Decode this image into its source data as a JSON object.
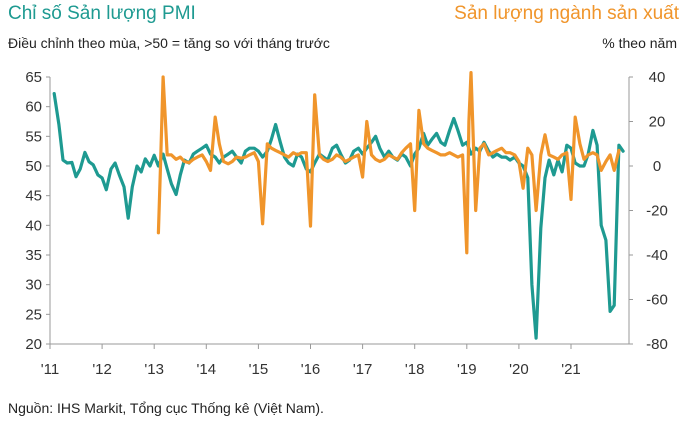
{
  "header": {
    "left_title": "Chỉ số Sản lượng PMI",
    "right_title": "Sản lượng ngành sản xuất",
    "left_subtitle": "Điều chỉnh theo mùa, >50 = tăng so với tháng trước",
    "right_subtitle": "% theo năm"
  },
  "footer": {
    "source": "Nguồn: IHS Markit, Tổng cục Thống kê (Việt Nam)."
  },
  "colors": {
    "pmi": "#1e9a91",
    "ip": "#f0952b",
    "axis": "#999999",
    "text": "#333333"
  },
  "chart_data": {
    "type": "line",
    "x_ticks": [
      "'11",
      "'12",
      "'13",
      "'14",
      "'15",
      "'16",
      "'17",
      "'18",
      "'19",
      "'20",
      "'21"
    ],
    "x_range": [
      2011.0,
      2021.83
    ],
    "y_left": {
      "ticks": [
        65,
        60,
        55,
        50,
        45,
        40,
        35,
        30,
        25,
        20
      ],
      "range": [
        20,
        65
      ]
    },
    "y_right": {
      "ticks": [
        40,
        20,
        0,
        -20,
        -40,
        -60,
        -80
      ],
      "range": [
        -80,
        40
      ]
    },
    "grid": false,
    "legend": "none",
    "series": [
      {
        "name": "Chỉ số Sản lượng PMI",
        "axis": "left",
        "color": "#1e9a91",
        "points": [
          [
            2011.08,
            62.2
          ],
          [
            2011.17,
            57.0
          ],
          [
            2011.25,
            51.0
          ],
          [
            2011.33,
            50.5
          ],
          [
            2011.42,
            50.6
          ],
          [
            2011.5,
            48.2
          ],
          [
            2011.58,
            49.5
          ],
          [
            2011.67,
            52.3
          ],
          [
            2011.75,
            50.7
          ],
          [
            2011.83,
            50.2
          ],
          [
            2011.92,
            48.5
          ],
          [
            2012.0,
            48.0
          ],
          [
            2012.08,
            46.0
          ],
          [
            2012.17,
            49.5
          ],
          [
            2012.25,
            50.5
          ],
          [
            2012.33,
            48.5
          ],
          [
            2012.42,
            46.5
          ],
          [
            2012.5,
            41.2
          ],
          [
            2012.58,
            46.5
          ],
          [
            2012.67,
            50.0
          ],
          [
            2012.75,
            49.0
          ],
          [
            2012.83,
            51.2
          ],
          [
            2012.92,
            50.0
          ],
          [
            2013.0,
            51.8
          ],
          [
            2013.08,
            50.0
          ],
          [
            2013.17,
            52.0
          ],
          [
            2013.25,
            49.5
          ],
          [
            2013.33,
            47.0
          ],
          [
            2013.42,
            45.2
          ],
          [
            2013.5,
            48.5
          ],
          [
            2013.58,
            51.0
          ],
          [
            2013.67,
            50.5
          ],
          [
            2013.75,
            52.0
          ],
          [
            2013.83,
            52.5
          ],
          [
            2013.92,
            53.0
          ],
          [
            2014.0,
            53.5
          ],
          [
            2014.08,
            52.0
          ],
          [
            2014.17,
            51.5
          ],
          [
            2014.25,
            50.5
          ],
          [
            2014.33,
            51.5
          ],
          [
            2014.42,
            52.0
          ],
          [
            2014.5,
            52.5
          ],
          [
            2014.58,
            51.5
          ],
          [
            2014.67,
            50.5
          ],
          [
            2014.75,
            52.5
          ],
          [
            2014.83,
            53.0
          ],
          [
            2014.92,
            53.0
          ],
          [
            2015.0,
            52.5
          ],
          [
            2015.08,
            51.5
          ],
          [
            2015.17,
            52.5
          ],
          [
            2015.25,
            54.5
          ],
          [
            2015.33,
            57.0
          ],
          [
            2015.42,
            54.0
          ],
          [
            2015.5,
            51.5
          ],
          [
            2015.58,
            50.5
          ],
          [
            2015.67,
            50.0
          ],
          [
            2015.75,
            52.0
          ],
          [
            2015.83,
            51.5
          ],
          [
            2015.92,
            49.5
          ],
          [
            2016.0,
            49.0
          ],
          [
            2016.08,
            50.5
          ],
          [
            2016.17,
            52.0
          ],
          [
            2016.25,
            51.5
          ],
          [
            2016.33,
            51.0
          ],
          [
            2016.42,
            53.0
          ],
          [
            2016.5,
            53.5
          ],
          [
            2016.58,
            52.0
          ],
          [
            2016.67,
            50.5
          ],
          [
            2016.75,
            51.0
          ],
          [
            2016.83,
            52.5
          ],
          [
            2016.92,
            53.0
          ],
          [
            2017.0,
            52.0
          ],
          [
            2017.08,
            53.0
          ],
          [
            2017.17,
            54.0
          ],
          [
            2017.25,
            55.0
          ],
          [
            2017.33,
            53.0
          ],
          [
            2017.42,
            51.5
          ],
          [
            2017.5,
            52.5
          ],
          [
            2017.58,
            51.5
          ],
          [
            2017.67,
            51.0
          ],
          [
            2017.75,
            52.0
          ],
          [
            2017.83,
            51.5
          ],
          [
            2017.92,
            50.0
          ],
          [
            2018.0,
            52.0
          ],
          [
            2018.08,
            53.0
          ],
          [
            2018.17,
            55.5
          ],
          [
            2018.25,
            53.5
          ],
          [
            2018.33,
            54.5
          ],
          [
            2018.42,
            55.5
          ],
          [
            2018.5,
            54.0
          ],
          [
            2018.58,
            53.5
          ],
          [
            2018.67,
            56.0
          ],
          [
            2018.75,
            58.0
          ],
          [
            2018.83,
            56.0
          ],
          [
            2018.92,
            53.5
          ],
          [
            2019.0,
            54.0
          ],
          [
            2019.08,
            52.0
          ],
          [
            2019.17,
            53.0
          ],
          [
            2019.25,
            52.5
          ],
          [
            2019.33,
            54.0
          ],
          [
            2019.42,
            52.5
          ],
          [
            2019.5,
            51.5
          ],
          [
            2019.58,
            52.0
          ],
          [
            2019.67,
            51.5
          ],
          [
            2019.75,
            51.5
          ],
          [
            2019.83,
            51.0
          ],
          [
            2019.92,
            51.5
          ],
          [
            2020.0,
            50.5
          ],
          [
            2020.08,
            50.0
          ],
          [
            2020.17,
            48.0
          ],
          [
            2020.25,
            30.0
          ],
          [
            2020.33,
            21.0
          ],
          [
            2020.42,
            39.5
          ],
          [
            2020.5,
            48.0
          ],
          [
            2020.58,
            51.0
          ],
          [
            2020.67,
            48.5
          ],
          [
            2020.75,
            51.0
          ],
          [
            2020.83,
            49.0
          ],
          [
            2020.92,
            53.5
          ],
          [
            2021.0,
            53.0
          ],
          [
            2021.08,
            50.5
          ],
          [
            2021.17,
            50.0
          ],
          [
            2021.25,
            50.0
          ],
          [
            2021.33,
            52.0
          ],
          [
            2021.42,
            56.0
          ],
          [
            2021.5,
            53.5
          ],
          [
            2021.58,
            40.0
          ],
          [
            2021.67,
            37.5
          ],
          [
            2021.75,
            25.5
          ],
          [
            2021.83,
            26.5
          ],
          [
            2021.92,
            53.5
          ],
          [
            2022.0,
            52.5
          ]
        ]
      },
      {
        "name": "Sản lượng ngành sản xuất",
        "axis": "right",
        "color": "#f0952b",
        "points": [
          [
            2013.08,
            -30.0
          ],
          [
            2013.12,
            0.0
          ],
          [
            2013.17,
            40.0
          ],
          [
            2013.25,
            5.0
          ],
          [
            2013.33,
            5.0
          ],
          [
            2013.42,
            3.0
          ],
          [
            2013.5,
            4.0
          ],
          [
            2013.58,
            2.0
          ],
          [
            2013.67,
            1.5
          ],
          [
            2013.75,
            3.0
          ],
          [
            2013.83,
            4.0
          ],
          [
            2013.92,
            5.0
          ],
          [
            2014.0,
            2.0
          ],
          [
            2014.08,
            -2.0
          ],
          [
            2014.17,
            22.0
          ],
          [
            2014.25,
            10.0
          ],
          [
            2014.33,
            2.0
          ],
          [
            2014.42,
            1.0
          ],
          [
            2014.5,
            2.0
          ],
          [
            2014.58,
            4.0
          ],
          [
            2014.67,
            3.5
          ],
          [
            2014.75,
            4.0
          ],
          [
            2014.83,
            5.0
          ],
          [
            2014.92,
            6.0
          ],
          [
            2015.0,
            2.0
          ],
          [
            2015.08,
            -26.0
          ],
          [
            2015.17,
            10.0
          ],
          [
            2015.25,
            8.0
          ],
          [
            2015.33,
            7.0
          ],
          [
            2015.42,
            6.0
          ],
          [
            2015.5,
            5.0
          ],
          [
            2015.58,
            4.0
          ],
          [
            2015.67,
            6.0
          ],
          [
            2015.75,
            5.0
          ],
          [
            2015.83,
            6.0
          ],
          [
            2015.92,
            6.0
          ],
          [
            2016.0,
            -27.0
          ],
          [
            2016.08,
            32.0
          ],
          [
            2016.17,
            5.0
          ],
          [
            2016.25,
            3.0
          ],
          [
            2016.33,
            2.0
          ],
          [
            2016.42,
            3.0
          ],
          [
            2016.5,
            5.0
          ],
          [
            2016.58,
            4.0
          ],
          [
            2016.67,
            2.0
          ],
          [
            2016.75,
            3.0
          ],
          [
            2016.83,
            4.0
          ],
          [
            2016.92,
            5.0
          ],
          [
            2017.0,
            -5.0
          ],
          [
            2017.08,
            20.0
          ],
          [
            2017.17,
            5.0
          ],
          [
            2017.25,
            3.0
          ],
          [
            2017.33,
            2.0
          ],
          [
            2017.42,
            3.0
          ],
          [
            2017.5,
            5.0
          ],
          [
            2017.58,
            4.0
          ],
          [
            2017.67,
            3.0
          ],
          [
            2017.75,
            6.0
          ],
          [
            2017.83,
            8.0
          ],
          [
            2017.92,
            10.0
          ],
          [
            2018.0,
            -20.0
          ],
          [
            2018.08,
            25.0
          ],
          [
            2018.17,
            10.0
          ],
          [
            2018.25,
            8.0
          ],
          [
            2018.33,
            7.0
          ],
          [
            2018.42,
            6.0
          ],
          [
            2018.5,
            5.0
          ],
          [
            2018.58,
            5.0
          ],
          [
            2018.67,
            6.0
          ],
          [
            2018.75,
            5.0
          ],
          [
            2018.83,
            4.0
          ],
          [
            2018.92,
            5.0
          ],
          [
            2019.0,
            -39.0
          ],
          [
            2019.04,
            20.0
          ],
          [
            2019.08,
            42.0
          ],
          [
            2019.17,
            -20.0
          ],
          [
            2019.25,
            8.0
          ],
          [
            2019.33,
            10.0
          ],
          [
            2019.42,
            5.0
          ],
          [
            2019.5,
            6.0
          ],
          [
            2019.58,
            7.0
          ],
          [
            2019.67,
            8.0
          ],
          [
            2019.75,
            6.0
          ],
          [
            2019.83,
            6.0
          ],
          [
            2019.92,
            5.0
          ],
          [
            2020.0,
            2.0
          ],
          [
            2020.08,
            -10.0
          ],
          [
            2020.17,
            8.0
          ],
          [
            2020.25,
            5.0
          ],
          [
            2020.33,
            -20.0
          ],
          [
            2020.42,
            5.0
          ],
          [
            2020.5,
            14.0
          ],
          [
            2020.58,
            5.0
          ],
          [
            2020.67,
            4.0
          ],
          [
            2020.75,
            3.0
          ],
          [
            2020.83,
            5.0
          ],
          [
            2020.92,
            6.0
          ],
          [
            2021.0,
            -15.0
          ],
          [
            2021.08,
            22.0
          ],
          [
            2021.17,
            10.0
          ],
          [
            2021.25,
            3.0
          ],
          [
            2021.33,
            5.0
          ],
          [
            2021.42,
            6.0
          ],
          [
            2021.5,
            5.0
          ],
          [
            2021.58,
            -2.0
          ],
          [
            2021.67,
            2.0
          ],
          [
            2021.75,
            5.0
          ],
          [
            2021.83,
            -2.0
          ],
          [
            2021.92,
            7.0
          ]
        ]
      }
    ]
  }
}
